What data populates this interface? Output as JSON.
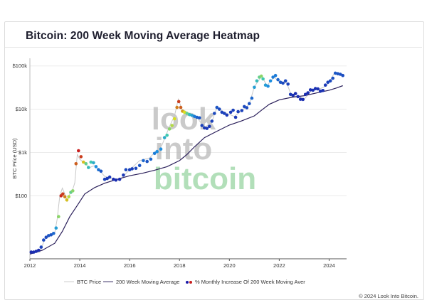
{
  "header": {
    "title": "Bitcoin: 200 Week Moving Average Heatmap"
  },
  "watermark": {
    "line1": "look",
    "line2": "into",
    "line3": "bitcoin"
  },
  "legend": {
    "btc_price": "BTC Price",
    "ma200": "200 Week Moving Average",
    "increase": "% Monthly Increase Of 200 Week Moving Aver"
  },
  "footer": {
    "copyright": "© 2024 Look Into Bitcoin."
  },
  "colors": {
    "price_line": "#c8c8c8",
    "ma_line": "#2a1f5a",
    "heat_low": "#1a1aa8",
    "heat_mid_low": "#1e8fe0",
    "heat_mid": "#3ec9b0",
    "heat_mid_high": "#d8e020",
    "heat_high": "#c81e1e",
    "watermark_gray": "#b9b9b9",
    "watermark_green": "#9fd8a8"
  },
  "chart_data": {
    "type": "scatter",
    "title": "Bitcoin: 200 Week Moving Average Heatmap",
    "xlabel": "",
    "ylabel": "BTC Price (USD)",
    "y_scale": "log",
    "xlim": [
      2012.0,
      2024.7
    ],
    "ylim": [
      3.5,
      150000
    ],
    "x_ticks": [
      2012,
      2014,
      2016,
      2018,
      2020,
      2022,
      2024
    ],
    "x_tick_labels": [
      "2012",
      "2014",
      "2016",
      "2018",
      "2020",
      "2022",
      "2024"
    ],
    "y_ticks": [
      100,
      1000,
      10000,
      100000
    ],
    "y_tick_labels": [
      "$100",
      "$1k",
      "$10k",
      "$100k"
    ],
    "grid": "horizontal",
    "ma_series": {
      "name": "200 Week Moving Average",
      "x": [
        2012.0,
        2012.5,
        2013.0,
        2013.3,
        2013.6,
        2013.9,
        2014.2,
        2014.6,
        2015.0,
        2015.5,
        2016.0,
        2016.5,
        2017.0,
        2017.5,
        2018.0,
        2018.3,
        2018.6,
        2019.0,
        2019.5,
        2020.0,
        2020.5,
        2021.0,
        2021.3,
        2021.6,
        2022.0,
        2022.5,
        2023.0,
        2023.5,
        2024.0,
        2024.3,
        2024.55
      ],
      "y": [
        4.5,
        5.5,
        8,
        15,
        33,
        60,
        110,
        155,
        195,
        240,
        290,
        330,
        390,
        470,
        650,
        900,
        1350,
        2200,
        3100,
        4300,
        5400,
        7000,
        9600,
        13000,
        16500,
        18800,
        20500,
        23800,
        27500,
        31000,
        35000
      ]
    },
    "price_series": {
      "name": "BTC Price",
      "x": [
        2012.0,
        2012.2,
        2012.4,
        2012.6,
        2012.8,
        2013.0,
        2013.1,
        2013.2,
        2013.3,
        2013.4,
        2013.5,
        2013.6,
        2013.7,
        2013.8,
        2013.9,
        2014.0,
        2014.2,
        2014.4,
        2014.6,
        2014.8,
        2015.0,
        2015.3,
        2015.6,
        2016.0,
        2016.4,
        2016.8,
        2017.0,
        2017.3,
        2017.6,
        2017.8,
        2017.95,
        2018.1,
        2018.4,
        2018.7,
        2019.0,
        2019.3,
        2019.5,
        2019.8,
        2020.2,
        2020.5,
        2020.8,
        2021.0,
        2021.3,
        2021.5,
        2021.8,
        2022.0,
        2022.3,
        2022.5,
        2022.8,
        2023.0,
        2023.3,
        2023.6,
        2023.9,
        2024.0,
        2024.2,
        2024.5
      ],
      "y": [
        5,
        5,
        5,
        10,
        12,
        14,
        30,
        100,
        150,
        110,
        75,
        110,
        130,
        200,
        900,
        700,
        550,
        450,
        500,
        380,
        280,
        250,
        230,
        400,
        650,
        750,
        1000,
        1500,
        4000,
        7000,
        17000,
        10000,
        8000,
        6500,
        3700,
        5200,
        11000,
        8500,
        6800,
        9300,
        13000,
        33000,
        58000,
        35000,
        55000,
        43000,
        40000,
        20000,
        19500,
        17000,
        27000,
        29000,
        35000,
        42000,
        67000,
        62000
      ]
    },
    "heatmap_points": {
      "name": "% Monthly Increase Of 200 Week Moving Aver",
      "color_scale": "0 = blue (low) to 1 = red (high)",
      "points": [
        [
          2012.05,
          5,
          0.05
        ],
        [
          2012.15,
          5,
          0.05
        ],
        [
          2012.25,
          5.2,
          0.05
        ],
        [
          2012.35,
          5.5,
          0.05
        ],
        [
          2012.45,
          6.5,
          0.1
        ],
        [
          2012.55,
          9.5,
          0.12
        ],
        [
          2012.65,
          11,
          0.12
        ],
        [
          2012.75,
          12,
          0.15
        ],
        [
          2012.85,
          12.5,
          0.15
        ],
        [
          2012.95,
          13.5,
          0.2
        ],
        [
          2013.05,
          18,
          0.35
        ],
        [
          2013.15,
          33,
          0.6
        ],
        [
          2013.25,
          100,
          0.98
        ],
        [
          2013.32,
          110,
          0.95
        ],
        [
          2013.4,
          95,
          0.85
        ],
        [
          2013.48,
          80,
          0.75
        ],
        [
          2013.56,
          95,
          0.65
        ],
        [
          2013.64,
          120,
          0.55
        ],
        [
          2013.72,
          130,
          0.6
        ],
        [
          2013.85,
          550,
          0.9
        ],
        [
          2013.95,
          1100,
          1.0
        ],
        [
          2014.05,
          800,
          0.95
        ],
        [
          2014.15,
          600,
          0.75
        ],
        [
          2014.25,
          550,
          0.55
        ],
        [
          2014.35,
          450,
          0.45
        ],
        [
          2014.45,
          600,
          0.5
        ],
        [
          2014.55,
          580,
          0.4
        ],
        [
          2014.65,
          470,
          0.3
        ],
        [
          2014.75,
          400,
          0.22
        ],
        [
          2014.85,
          370,
          0.15
        ],
        [
          2015.0,
          240,
          0.1
        ],
        [
          2015.1,
          250,
          0.08
        ],
        [
          2015.2,
          270,
          0.08
        ],
        [
          2015.35,
          240,
          0.05
        ],
        [
          2015.45,
          230,
          0.05
        ],
        [
          2015.6,
          240,
          0.05
        ],
        [
          2015.75,
          300,
          0.08
        ],
        [
          2015.85,
          400,
          0.12
        ],
        [
          2016.0,
          400,
          0.1
        ],
        [
          2016.1,
          420,
          0.1
        ],
        [
          2016.25,
          430,
          0.12
        ],
        [
          2016.4,
          500,
          0.15
        ],
        [
          2016.55,
          650,
          0.2
        ],
        [
          2016.7,
          620,
          0.15
        ],
        [
          2016.85,
          700,
          0.2
        ],
        [
          2017.0,
          950,
          0.25
        ],
        [
          2017.1,
          1050,
          0.3
        ],
        [
          2017.25,
          1200,
          0.3
        ],
        [
          2017.4,
          2200,
          0.4
        ],
        [
          2017.5,
          2500,
          0.5
        ],
        [
          2017.6,
          3500,
          0.6
        ],
        [
          2017.7,
          4200,
          0.65
        ],
        [
          2017.8,
          6000,
          0.7
        ],
        [
          2017.9,
          11000,
          0.85
        ],
        [
          2017.97,
          15000,
          0.95
        ],
        [
          2018.05,
          11000,
          0.9
        ],
        [
          2018.12,
          9000,
          0.8
        ],
        [
          2018.2,
          8500,
          0.7
        ],
        [
          2018.3,
          8000,
          0.55
        ],
        [
          2018.4,
          7500,
          0.45
        ],
        [
          2018.5,
          7200,
          0.35
        ],
        [
          2018.6,
          6800,
          0.25
        ],
        [
          2018.7,
          6500,
          0.18
        ],
        [
          2018.8,
          6300,
          0.15
        ],
        [
          2018.9,
          4200,
          0.1
        ],
        [
          2019.0,
          3700,
          0.08
        ],
        [
          2019.1,
          3600,
          0.08
        ],
        [
          2019.2,
          4000,
          0.08
        ],
        [
          2019.3,
          5300,
          0.1
        ],
        [
          2019.4,
          8000,
          0.12
        ],
        [
          2019.5,
          11000,
          0.15
        ],
        [
          2019.6,
          10000,
          0.12
        ],
        [
          2019.7,
          8500,
          0.1
        ],
        [
          2019.8,
          8000,
          0.1
        ],
        [
          2019.9,
          7300,
          0.08
        ],
        [
          2020.05,
          8500,
          0.08
        ],
        [
          2020.15,
          9500,
          0.1
        ],
        [
          2020.25,
          6500,
          0.08
        ],
        [
          2020.35,
          8800,
          0.1
        ],
        [
          2020.5,
          9300,
          0.1
        ],
        [
          2020.6,
          11500,
          0.12
        ],
        [
          2020.7,
          10800,
          0.12
        ],
        [
          2020.8,
          13500,
          0.15
        ],
        [
          2020.9,
          18000,
          0.2
        ],
        [
          2021.0,
          32000,
          0.35
        ],
        [
          2021.1,
          45000,
          0.45
        ],
        [
          2021.2,
          55000,
          0.55
        ],
        [
          2021.28,
          58000,
          0.6
        ],
        [
          2021.35,
          50000,
          0.5
        ],
        [
          2021.45,
          36000,
          0.35
        ],
        [
          2021.55,
          34000,
          0.3
        ],
        [
          2021.65,
          45000,
          0.3
        ],
        [
          2021.75,
          55000,
          0.25
        ],
        [
          2021.85,
          60000,
          0.25
        ],
        [
          2021.95,
          48000,
          0.2
        ],
        [
          2022.05,
          42000,
          0.15
        ],
        [
          2022.15,
          40000,
          0.12
        ],
        [
          2022.25,
          45000,
          0.12
        ],
        [
          2022.35,
          38000,
          0.1
        ],
        [
          2022.45,
          22000,
          0.08
        ],
        [
          2022.55,
          21000,
          0.06
        ],
        [
          2022.65,
          23000,
          0.05
        ],
        [
          2022.75,
          19500,
          0.05
        ],
        [
          2022.85,
          17000,
          0.05
        ],
        [
          2022.95,
          16800,
          0.05
        ],
        [
          2023.05,
          22000,
          0.05
        ],
        [
          2023.15,
          24000,
          0.05
        ],
        [
          2023.25,
          28000,
          0.06
        ],
        [
          2023.35,
          27500,
          0.06
        ],
        [
          2023.45,
          30000,
          0.06
        ],
        [
          2023.55,
          29500,
          0.06
        ],
        [
          2023.65,
          26000,
          0.06
        ],
        [
          2023.75,
          27000,
          0.06
        ],
        [
          2023.85,
          36000,
          0.08
        ],
        [
          2023.95,
          42000,
          0.1
        ],
        [
          2024.05,
          45000,
          0.12
        ],
        [
          2024.15,
          52000,
          0.14
        ],
        [
          2024.25,
          68000,
          0.16
        ],
        [
          2024.35,
          66000,
          0.15
        ],
        [
          2024.45,
          64000,
          0.14
        ],
        [
          2024.55,
          60000,
          0.13
        ]
      ]
    }
  }
}
